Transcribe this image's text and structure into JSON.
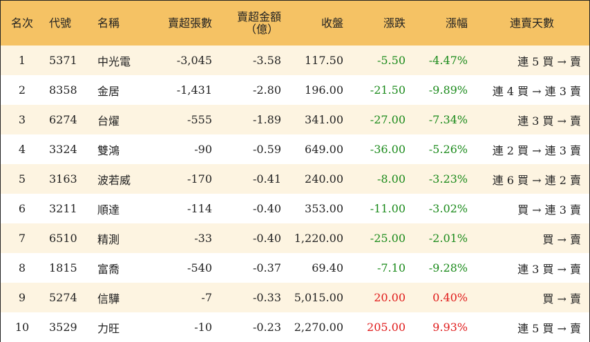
{
  "headers": {
    "rank": "名次",
    "code": "代號",
    "name": "名稱",
    "sell_lots": "賣超張數",
    "sell_amount_line1": "賣超金額",
    "sell_amount_line2": "（億）",
    "close": "收盤",
    "change": "漲跌",
    "change_pct": "漲幅",
    "streak": "連賣天數"
  },
  "colors": {
    "header_bg": "#f5c264",
    "row_alt_bg": "#fdf4e1",
    "down": "#1a8a1a",
    "up": "#e01a1a"
  },
  "rows": [
    {
      "rank": "1",
      "code": "5371",
      "name": "中光電",
      "sell_lots": "-3,045",
      "sell_amount": "-3.58",
      "close": "117.50",
      "change": "-5.50",
      "change_pct": "-4.47%",
      "streak": "連 5 買 → 賣",
      "direction": "down"
    },
    {
      "rank": "2",
      "code": "8358",
      "name": "金居",
      "sell_lots": "-1,431",
      "sell_amount": "-2.80",
      "close": "196.00",
      "change": "-21.50",
      "change_pct": "-9.89%",
      "streak": "連 4 買 → 連 3 賣",
      "direction": "down"
    },
    {
      "rank": "3",
      "code": "6274",
      "name": "台燿",
      "sell_lots": "-555",
      "sell_amount": "-1.89",
      "close": "341.00",
      "change": "-27.00",
      "change_pct": "-7.34%",
      "streak": "連 3 買 → 賣",
      "direction": "down"
    },
    {
      "rank": "4",
      "code": "3324",
      "name": "雙鴻",
      "sell_lots": "-90",
      "sell_amount": "-0.59",
      "close": "649.00",
      "change": "-36.00",
      "change_pct": "-5.26%",
      "streak": "連 2 買 → 連 3 賣",
      "direction": "down"
    },
    {
      "rank": "5",
      "code": "3163",
      "name": "波若威",
      "sell_lots": "-170",
      "sell_amount": "-0.41",
      "close": "240.00",
      "change": "-8.00",
      "change_pct": "-3.23%",
      "streak": "連 6 買 → 連 2 賣",
      "direction": "down"
    },
    {
      "rank": "6",
      "code": "3211",
      "name": "順達",
      "sell_lots": "-114",
      "sell_amount": "-0.40",
      "close": "353.00",
      "change": "-11.00",
      "change_pct": "-3.02%",
      "streak": "買 → 連 3 賣",
      "direction": "down"
    },
    {
      "rank": "7",
      "code": "6510",
      "name": "精測",
      "sell_lots": "-33",
      "sell_amount": "-0.40",
      "close": "1,220.00",
      "change": "-25.00",
      "change_pct": "-2.01%",
      "streak": "買 → 賣",
      "direction": "down"
    },
    {
      "rank": "8",
      "code": "1815",
      "name": "富喬",
      "sell_lots": "-540",
      "sell_amount": "-0.37",
      "close": "69.40",
      "change": "-7.10",
      "change_pct": "-9.28%",
      "streak": "連 3 買 → 賣",
      "direction": "down"
    },
    {
      "rank": "9",
      "code": "5274",
      "name": "信驊",
      "sell_lots": "-7",
      "sell_amount": "-0.33",
      "close": "5,015.00",
      "change": "20.00",
      "change_pct": "0.40%",
      "streak": "買 → 賣",
      "direction": "up"
    },
    {
      "rank": "10",
      "code": "3529",
      "name": "力旺",
      "sell_lots": "-10",
      "sell_amount": "-0.23",
      "close": "2,270.00",
      "change": "205.00",
      "change_pct": "9.93%",
      "streak": "連 5 買 → 賣",
      "direction": "up"
    }
  ]
}
